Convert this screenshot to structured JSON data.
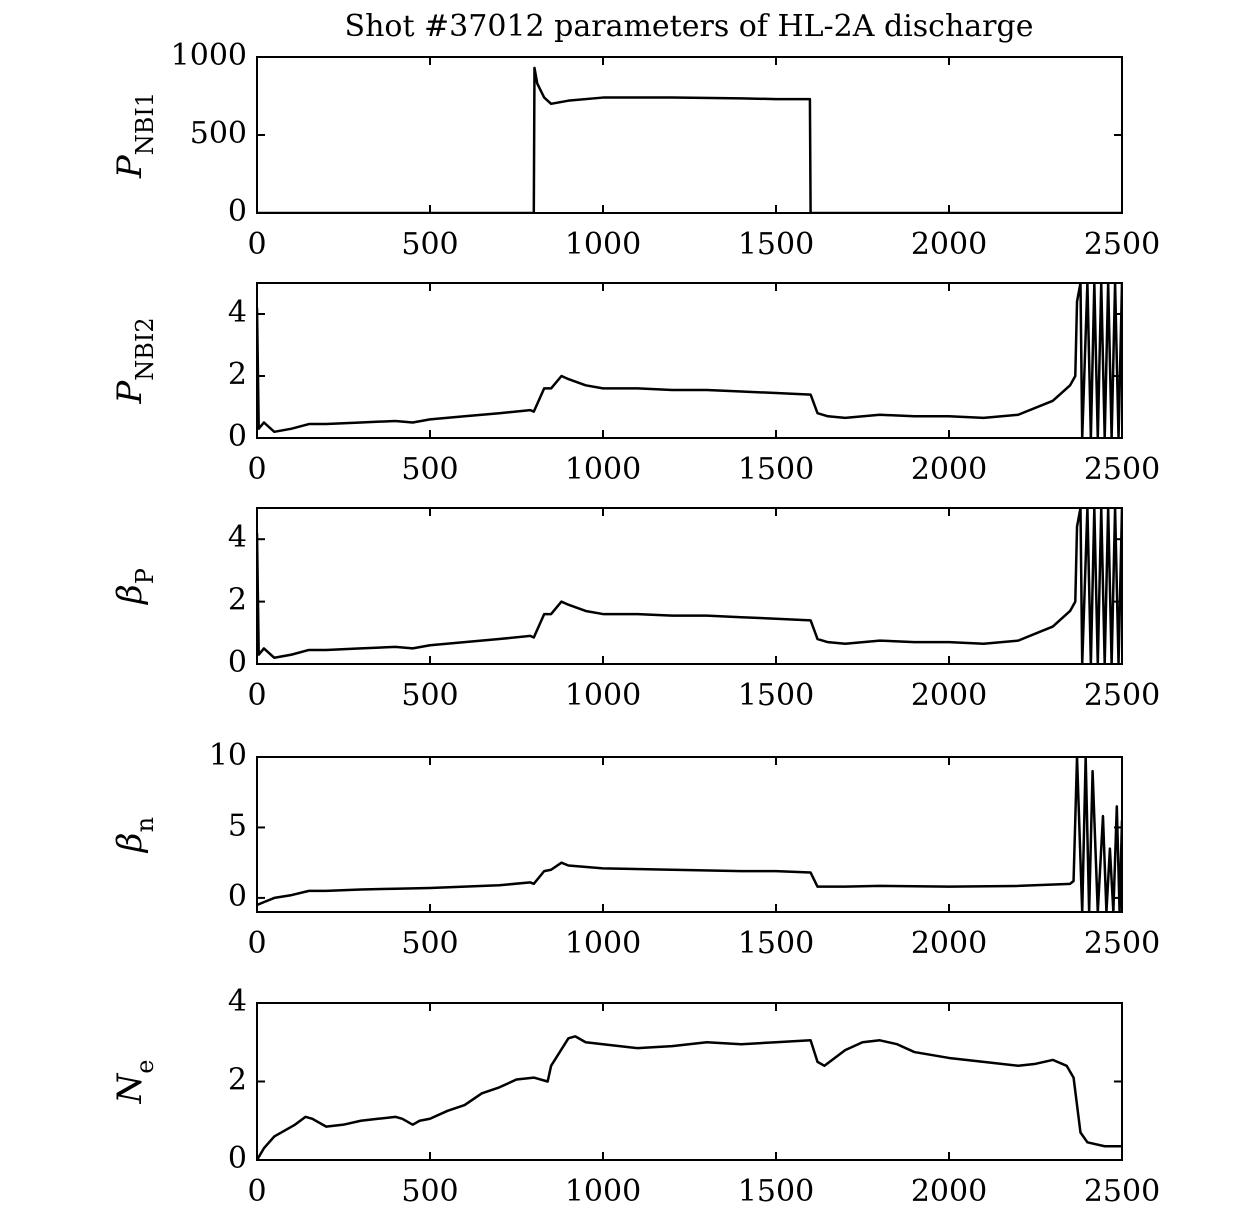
{
  "chart_data": [
    {
      "type": "line",
      "title": "Shot #37012 parameters of HL-2A discharge",
      "ylabel": "P",
      "ylabel_subscript": "NBI1",
      "xlim": [
        0,
        2500
      ],
      "xticks": [
        0,
        500,
        1000,
        1500,
        2000,
        2500
      ],
      "ylim": [
        0,
        1000
      ],
      "yticks": [
        0,
        500,
        1000
      ],
      "color": "#000000",
      "series": [
        {
          "name": null,
          "color": "#000000",
          "x": [
            0,
            800,
            802,
            810,
            830,
            850,
            900,
            1000,
            1200,
            1400,
            1500,
            1598,
            1600,
            2500
          ],
          "values": [
            0,
            0,
            930,
            830,
            740,
            700,
            720,
            740,
            740,
            735,
            730,
            730,
            0,
            0
          ]
        }
      ]
    },
    {
      "type": "line",
      "ylabel": "P",
      "ylabel_subscript": "NBI2",
      "xlim": [
        0,
        2500
      ],
      "xticks": [
        0,
        500,
        1000,
        1500,
        2000,
        2500
      ],
      "ylim": [
        0,
        5
      ],
      "yticks": [
        0,
        2,
        4
      ],
      "color": "#000000",
      "series": [
        {
          "name": null,
          "color": "#000000",
          "x": [
            0,
            5,
            20,
            50,
            100,
            150,
            200,
            300,
            400,
            450,
            500,
            600,
            700,
            790,
            800,
            830,
            850,
            880,
            900,
            950,
            1000,
            1100,
            1200,
            1300,
            1400,
            1500,
            1600,
            1620,
            1650,
            1700,
            1800,
            1900,
            2000,
            2100,
            2200,
            2300,
            2350,
            2365,
            2370,
            2380,
            2385,
            2400,
            2410,
            2420,
            2430,
            2440,
            2450,
            2460,
            2470,
            2480,
            2490,
            2500
          ],
          "values": [
            4.2,
            0.3,
            0.5,
            0.2,
            0.3,
            0.45,
            0.45,
            0.5,
            0.55,
            0.5,
            0.6,
            0.7,
            0.8,
            0.9,
            0.85,
            1.6,
            1.6,
            2.0,
            1.9,
            1.7,
            1.6,
            1.6,
            1.55,
            1.55,
            1.5,
            1.45,
            1.4,
            0.8,
            0.7,
            0.65,
            0.75,
            0.7,
            0.7,
            0.65,
            0.75,
            1.2,
            1.7,
            2.0,
            4.4,
            5,
            0,
            5,
            0,
            5,
            0,
            5,
            0,
            5,
            0,
            5,
            0,
            5
          ]
        }
      ]
    },
    {
      "type": "line",
      "ylabel": "β",
      "ylabel_subscript": "P",
      "xlim": [
        0,
        2500
      ],
      "xticks": [
        0,
        500,
        1000,
        1500,
        2000,
        2500
      ],
      "ylim": [
        0,
        5
      ],
      "yticks": [
        0,
        2,
        4
      ],
      "color": "#000000",
      "series": [
        {
          "name": null,
          "color": "#000000",
          "x": [
            0,
            5,
            20,
            50,
            100,
            150,
            200,
            300,
            400,
            450,
            500,
            600,
            700,
            790,
            800,
            830,
            850,
            880,
            900,
            950,
            1000,
            1100,
            1200,
            1300,
            1400,
            1500,
            1600,
            1620,
            1650,
            1700,
            1800,
            1900,
            2000,
            2100,
            2200,
            2300,
            2350,
            2365,
            2370,
            2380,
            2385,
            2400,
            2410,
            2420,
            2430,
            2440,
            2450,
            2460,
            2470,
            2480,
            2490,
            2500
          ],
          "values": [
            4.2,
            0.3,
            0.5,
            0.2,
            0.3,
            0.45,
            0.45,
            0.5,
            0.55,
            0.5,
            0.6,
            0.7,
            0.8,
            0.9,
            0.85,
            1.6,
            1.6,
            2.0,
            1.9,
            1.7,
            1.6,
            1.6,
            1.55,
            1.55,
            1.5,
            1.45,
            1.4,
            0.8,
            0.7,
            0.65,
            0.75,
            0.7,
            0.7,
            0.65,
            0.75,
            1.2,
            1.7,
            2.0,
            4.4,
            5,
            0,
            5,
            0,
            5,
            0,
            5,
            0,
            5,
            0,
            5,
            0,
            5
          ]
        }
      ]
    },
    {
      "type": "line",
      "ylabel": "β",
      "ylabel_subscript": "n",
      "xlim": [
        0,
        2500
      ],
      "xticks": [
        0,
        500,
        1000,
        1500,
        2000,
        2500
      ],
      "ylim": [
        -1,
        10
      ],
      "yticks": [
        0,
        5,
        10
      ],
      "color": "#000000",
      "series": [
        {
          "name": null,
          "color": "#000000",
          "x": [
            0,
            20,
            50,
            100,
            150,
            200,
            300,
            400,
            500,
            600,
            700,
            790,
            800,
            830,
            850,
            880,
            900,
            1000,
            1200,
            1400,
            1500,
            1600,
            1620,
            1700,
            1800,
            2000,
            2200,
            2350,
            2360,
            2370,
            2385,
            2395,
            2405,
            2415,
            2430,
            2445,
            2455,
            2465,
            2475,
            2485,
            2493,
            2500
          ],
          "values": [
            -0.5,
            -0.3,
            0,
            0.2,
            0.5,
            0.5,
            0.6,
            0.65,
            0.7,
            0.8,
            0.9,
            1.1,
            1.0,
            1.9,
            2.0,
            2.5,
            2.3,
            2.1,
            2.0,
            1.9,
            1.9,
            1.8,
            0.8,
            0.8,
            0.85,
            0.8,
            0.85,
            1.0,
            1.2,
            10,
            -1,
            10,
            -1,
            9,
            -1,
            5.8,
            -1,
            3.5,
            -1,
            6.5,
            -1,
            5.5
          ]
        }
      ]
    },
    {
      "type": "line",
      "ylabel": "N",
      "ylabel_subscript": "e",
      "xlim": [
        0,
        2500
      ],
      "xticks": [
        0,
        500,
        1000,
        1500,
        2000,
        2500
      ],
      "ylim": [
        0,
        4
      ],
      "yticks": [
        0,
        2,
        4
      ],
      "color": "#000000",
      "series": [
        {
          "name": null,
          "color": "#000000",
          "x": [
            0,
            20,
            50,
            80,
            110,
            140,
            160,
            200,
            250,
            300,
            350,
            400,
            420,
            450,
            470,
            500,
            550,
            600,
            650,
            700,
            750,
            800,
            840,
            850,
            900,
            920,
            950,
            1000,
            1100,
            1200,
            1300,
            1400,
            1500,
            1600,
            1620,
            1640,
            1700,
            1750,
            1800,
            1850,
            1900,
            2000,
            2100,
            2200,
            2250,
            2300,
            2340,
            2360,
            2370,
            2380,
            2400,
            2450,
            2500
          ],
          "values": [
            0,
            0.3,
            0.6,
            0.75,
            0.9,
            1.1,
            1.05,
            0.85,
            0.9,
            1.0,
            1.05,
            1.1,
            1.05,
            0.9,
            1.0,
            1.05,
            1.25,
            1.4,
            1.7,
            1.85,
            2.05,
            2.1,
            2.0,
            2.4,
            3.1,
            3.15,
            3.0,
            2.95,
            2.85,
            2.9,
            3.0,
            2.95,
            3.0,
            3.05,
            2.5,
            2.4,
            2.8,
            3.0,
            3.05,
            2.95,
            2.75,
            2.6,
            2.5,
            2.4,
            2.45,
            2.55,
            2.4,
            2.1,
            1.4,
            0.7,
            0.45,
            0.35,
            0.35
          ]
        }
      ]
    }
  ]
}
